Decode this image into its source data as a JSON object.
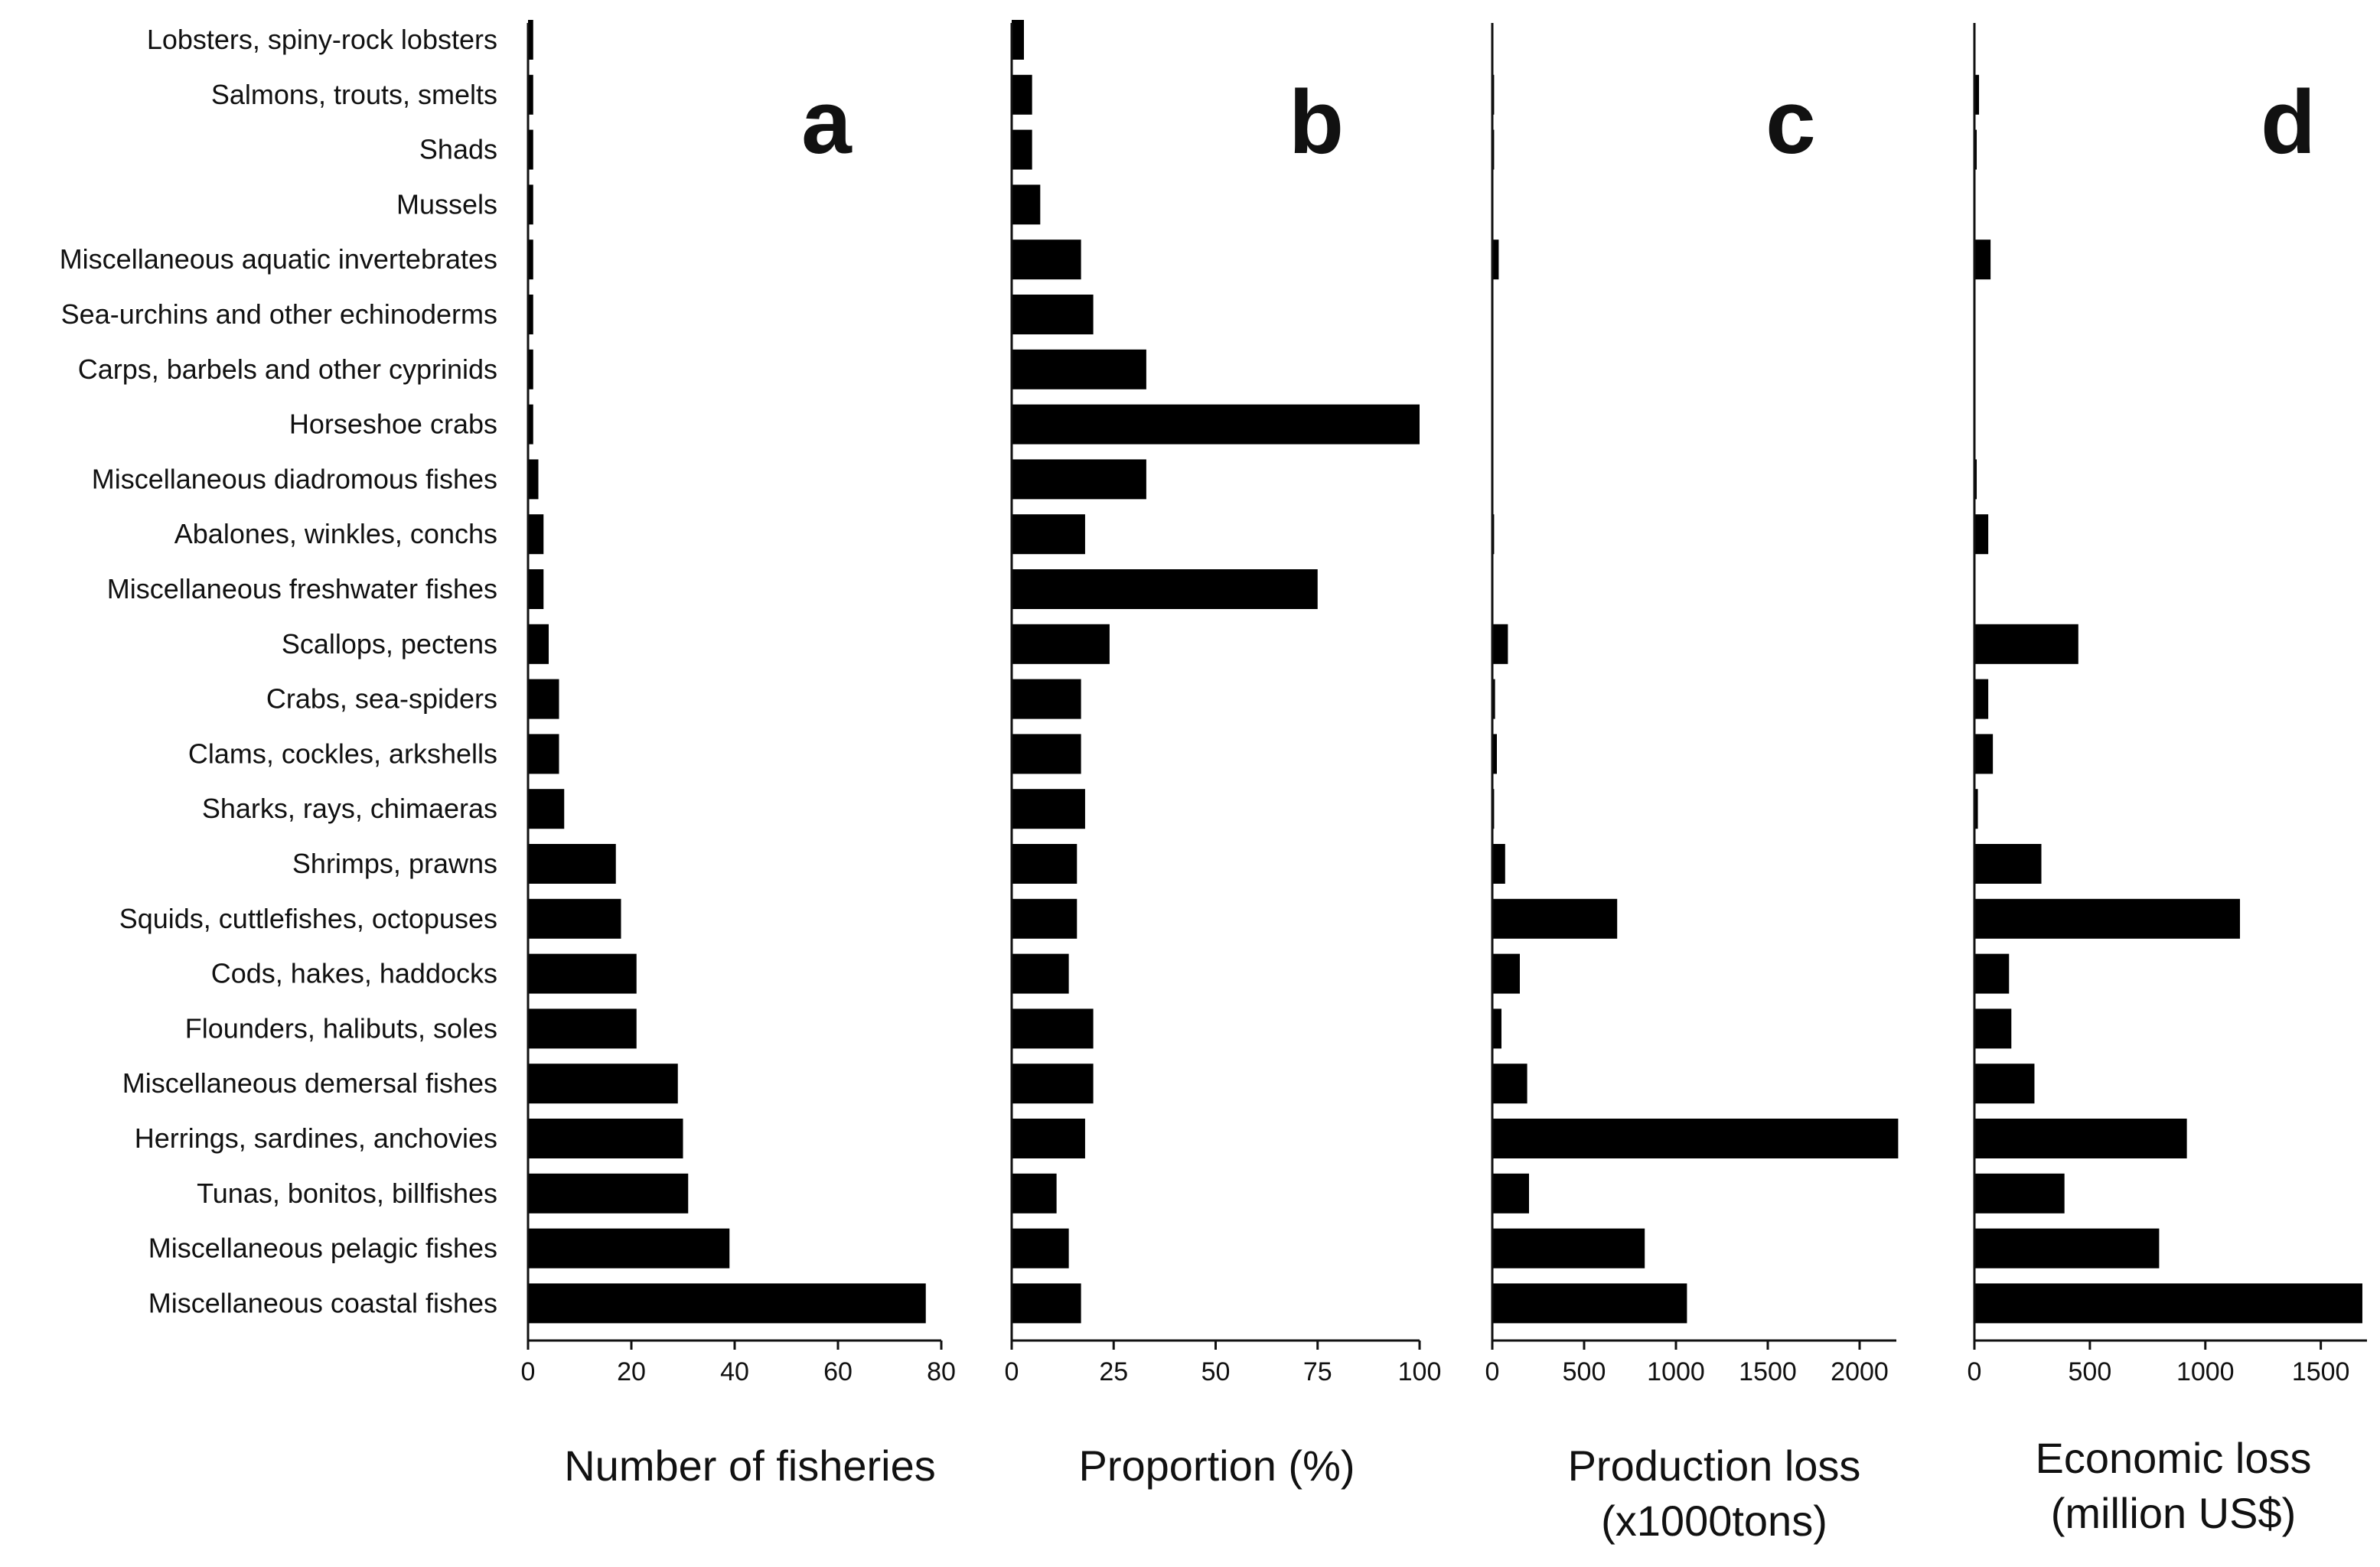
{
  "colors": {
    "bar": "#000000",
    "axis": "#111111",
    "background": "#ffffff"
  },
  "chart_data": {
    "type": "bar",
    "orientation": "horizontal",
    "categories": [
      "Lobsters, spiny-rock lobsters",
      "Salmons, trouts, smelts",
      "Shads",
      "Mussels",
      "Miscellaneous aquatic invertebrates",
      "Sea-urchins and other echinoderms",
      "Carps, barbels and other cyprinids",
      "Horseshoe crabs",
      "Miscellaneous diadromous fishes",
      "Abalones, winkles, conchs",
      "Miscellaneous freshwater fishes",
      "Scallops, pectens",
      "Crabs, sea-spiders",
      "Clams, cockles, arkshells",
      "Sharks, rays, chimaeras",
      "Shrimps, prawns",
      "Squids, cuttlefishes, octopuses",
      "Cods, hakes, haddocks",
      "Flounders, halibuts, soles",
      "Miscellaneous demersal fishes",
      "Herrings, sardines, anchovies",
      "Tunas, bonitos, billfishes",
      "Miscellaneous pelagic fishes",
      "Miscellaneous coastal fishes"
    ],
    "panels": [
      {
        "letter": "a",
        "xlabel": [
          "Number of fisheries"
        ],
        "xlim": [
          0,
          80
        ],
        "ticks": [
          0,
          20,
          40,
          60,
          80
        ],
        "values": [
          1,
          1,
          1,
          1,
          1,
          1,
          1,
          1,
          2,
          3,
          3,
          4,
          6,
          6,
          7,
          17,
          18,
          21,
          21,
          29,
          30,
          31,
          39,
          77
        ]
      },
      {
        "letter": "b",
        "xlabel": [
          "Proportion (%)"
        ],
        "xlim": [
          0,
          100
        ],
        "ticks": [
          0,
          25,
          50,
          75,
          100
        ],
        "values": [
          3,
          5,
          5,
          7,
          17,
          20,
          33,
          100,
          33,
          18,
          75,
          24,
          17,
          17,
          18,
          16,
          16,
          14,
          20,
          20,
          18,
          11,
          14,
          17
        ]
      },
      {
        "letter": "c",
        "xlabel": [
          "Production loss",
          "(x1000tons)"
        ],
        "xlim": [
          0,
          2200
        ],
        "ticks": [
          0,
          500,
          1000,
          1500,
          2000
        ],
        "values": [
          0,
          10,
          10,
          0,
          35,
          0,
          0,
          0,
          0,
          10,
          0,
          85,
          15,
          25,
          10,
          70,
          680,
          150,
          50,
          190,
          2210,
          200,
          830,
          1060
        ]
      },
      {
        "letter": "d",
        "xlabel": [
          "Economic loss",
          "(million US$)"
        ],
        "xlim": [
          0,
          1700
        ],
        "ticks": [
          0,
          500,
          1000,
          1500
        ],
        "values": [
          0,
          20,
          10,
          0,
          70,
          0,
          0,
          0,
          10,
          60,
          0,
          450,
          60,
          80,
          15,
          290,
          1150,
          150,
          160,
          260,
          920,
          390,
          800,
          1680
        ]
      }
    ]
  }
}
